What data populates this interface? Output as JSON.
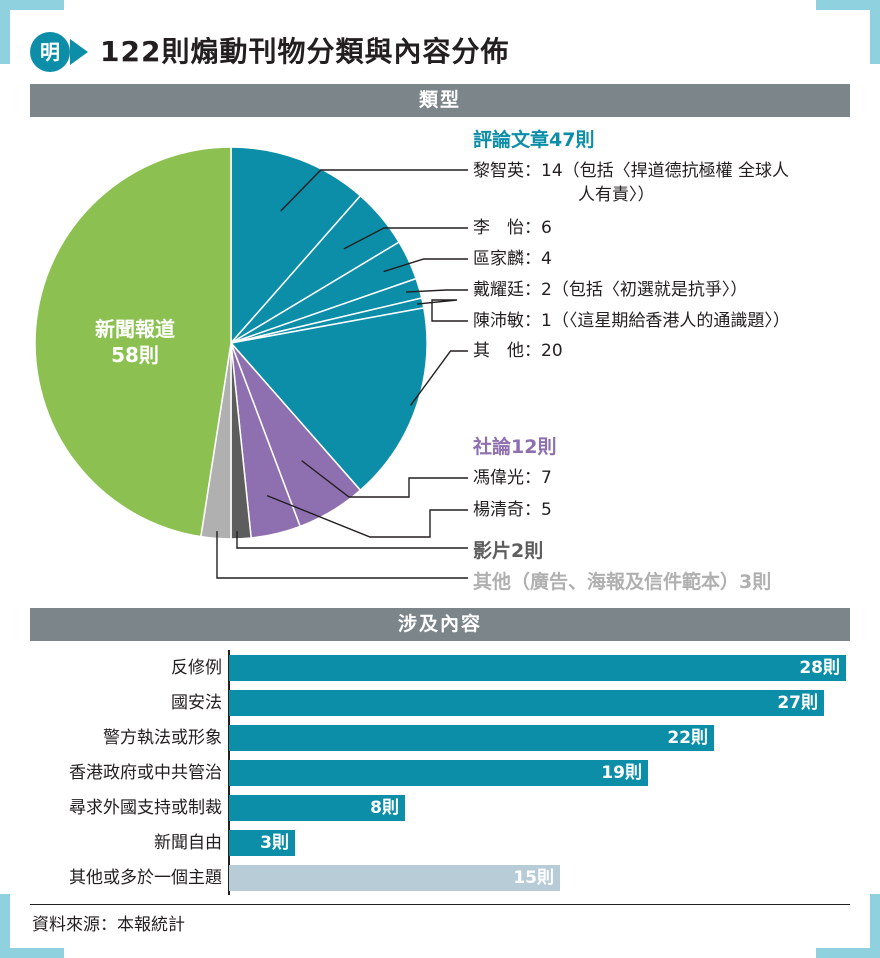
{
  "title": "122則煽動刊物分類與內容分佈",
  "logo_text": "明",
  "colors": {
    "teal": "#0c8ea8",
    "purple": "#8e6faf",
    "green": "#8cc152",
    "dark": "#5d5d5d",
    "lightgray": "#b0b0b0",
    "barlight": "#b7ccd6",
    "sectionbar": "#7b858a"
  },
  "section_type": "類型",
  "section_content": "涉及內容",
  "source": "資料來源：本報統計",
  "chart_data": [
    {
      "type": "pie",
      "slices": [
        {
          "group": "評論文章",
          "name": "黎智英",
          "value": 14,
          "color": "#0c8ea8"
        },
        {
          "group": "評論文章",
          "name": "李　怡",
          "value": 6,
          "color": "#0c8ea8"
        },
        {
          "group": "評論文章",
          "name": "區家麟",
          "value": 4,
          "color": "#0c8ea8"
        },
        {
          "group": "評論文章",
          "name": "戴耀廷",
          "value": 2,
          "color": "#0c8ea8"
        },
        {
          "group": "評論文章",
          "name": "陳沛敏",
          "value": 1,
          "color": "#0c8ea8"
        },
        {
          "group": "評論文章",
          "name": "其　他",
          "value": 20,
          "color": "#0c8ea8"
        },
        {
          "group": "社論",
          "name": "馮偉光",
          "value": 7,
          "color": "#8e6faf"
        },
        {
          "group": "社論",
          "name": "楊清奇",
          "value": 5,
          "color": "#8e6faf"
        },
        {
          "group": "影片",
          "name": "影片",
          "value": 2,
          "color": "#5d5d5d"
        },
        {
          "group": "其他",
          "name": "其他",
          "value": 3,
          "color": "#b0b0b0"
        },
        {
          "group": "新聞報道",
          "name": "新聞報道",
          "value": 58,
          "color": "#8cc152"
        }
      ],
      "groups": {
        "commentary": "評論文章47則",
        "editorial": "社論12則",
        "video": "影片2則",
        "other": "其他（廣告、海報及信件範本）3則",
        "news": [
          "新聞報道",
          "58則"
        ]
      },
      "labels": {
        "l1a": "黎智英：14（包括〈捍道德抗極權 全球人",
        "l1b": "人有責〉）",
        "l2": "李　怡：6",
        "l3": "區家麟：4",
        "l4": "戴耀廷：2（包括〈初選就是抗爭〉）",
        "l5": "陳沛敏：1（〈這星期給香港人的通識題〉）",
        "l6": "其　他：20",
        "l7": "馮偉光：7",
        "l8": "楊清奇：5"
      }
    },
    {
      "type": "bar",
      "orientation": "horizontal",
      "categories": [
        "反修例",
        "國安法",
        "警方執法或形象",
        "香港政府或中共管治",
        "尋求外國支持或制裁",
        "新聞自由",
        "其他或多於一個主題"
      ],
      "values": [
        28,
        27,
        22,
        19,
        8,
        3,
        15
      ],
      "value_labels": [
        "28則",
        "27則",
        "22則",
        "19則",
        "8則",
        "3則",
        "15則"
      ],
      "colors": [
        "#0c8ea8",
        "#0c8ea8",
        "#0c8ea8",
        "#0c8ea8",
        "#0c8ea8",
        "#0c8ea8",
        "#b7ccd6"
      ]
    }
  ]
}
